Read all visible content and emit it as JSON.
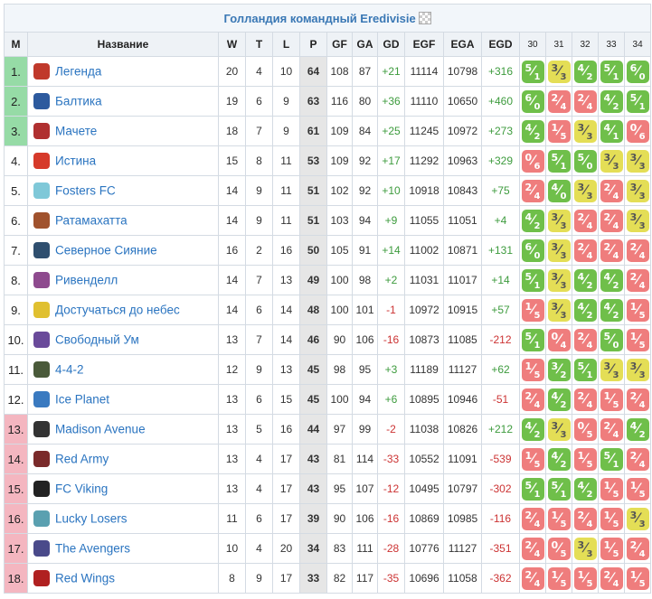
{
  "title": "Голландия командный Eredivisie",
  "headers": {
    "pos": "M",
    "name": "Название",
    "w": "W",
    "d": "T",
    "l": "L",
    "p": "P",
    "gf": "GF",
    "ga": "GA",
    "gd": "GD",
    "egf": "EGF",
    "ega": "EGA",
    "egd": "EGD",
    "rounds": [
      "30",
      "31",
      "32",
      "33",
      "34"
    ]
  },
  "colors": {
    "win": "#6fbf4a",
    "loss": "#ef7d7d",
    "draw": "#e4de56",
    "promo": "#96dba6",
    "releg": "#f4b6c0"
  },
  "rows": [
    {
      "pos": "1.",
      "zone": "green",
      "logo": "#c0392b",
      "name": "Легенда",
      "w": "20",
      "d": "4",
      "l": "10",
      "p": "64",
      "gf": "108",
      "ga": "87",
      "gd": "+21",
      "egf": "11114",
      "ega": "10798",
      "egd": "+316",
      "res": [
        [
          "W",
          "5",
          "1"
        ],
        [
          "D",
          "3",
          "3"
        ],
        [
          "W",
          "4",
          "2"
        ],
        [
          "W",
          "5",
          "1"
        ],
        [
          "W",
          "6",
          "0"
        ]
      ]
    },
    {
      "pos": "2.",
      "zone": "green",
      "logo": "#2d5a9e",
      "name": "Балтика",
      "w": "19",
      "d": "6",
      "l": "9",
      "p": "63",
      "gf": "116",
      "ga": "80",
      "gd": "+36",
      "egf": "11110",
      "ega": "10650",
      "egd": "+460",
      "res": [
        [
          "W",
          "6",
          "0"
        ],
        [
          "L",
          "2",
          "4"
        ],
        [
          "L",
          "2",
          "4"
        ],
        [
          "W",
          "4",
          "2"
        ],
        [
          "W",
          "5",
          "1"
        ]
      ]
    },
    {
      "pos": "3.",
      "zone": "green",
      "logo": "#b03030",
      "name": "Мачете",
      "w": "18",
      "d": "7",
      "l": "9",
      "p": "61",
      "gf": "109",
      "ga": "84",
      "gd": "+25",
      "egf": "11245",
      "ega": "10972",
      "egd": "+273",
      "res": [
        [
          "W",
          "4",
          "2"
        ],
        [
          "L",
          "1",
          "5"
        ],
        [
          "D",
          "3",
          "3"
        ],
        [
          "W",
          "4",
          "1"
        ],
        [
          "L",
          "0",
          "6"
        ]
      ]
    },
    {
      "pos": "4.",
      "zone": "",
      "logo": "#d63a2a",
      "name": "Истина",
      "w": "15",
      "d": "8",
      "l": "11",
      "p": "53",
      "gf": "109",
      "ga": "92",
      "gd": "+17",
      "egf": "11292",
      "ega": "10963",
      "egd": "+329",
      "res": [
        [
          "L",
          "0",
          "6"
        ],
        [
          "W",
          "5",
          "1"
        ],
        [
          "W",
          "5",
          "0"
        ],
        [
          "D",
          "3",
          "3"
        ],
        [
          "D",
          "3",
          "3"
        ]
      ]
    },
    {
      "pos": "5.",
      "zone": "",
      "logo": "#7fc8d8",
      "name": "Fosters FC",
      "w": "14",
      "d": "9",
      "l": "11",
      "p": "51",
      "gf": "102",
      "ga": "92",
      "gd": "+10",
      "egf": "10918",
      "ega": "10843",
      "egd": "+75",
      "res": [
        [
          "L",
          "2",
          "4"
        ],
        [
          "W",
          "4",
          "0"
        ],
        [
          "D",
          "3",
          "3"
        ],
        [
          "L",
          "2",
          "4"
        ],
        [
          "D",
          "3",
          "3"
        ]
      ]
    },
    {
      "pos": "6.",
      "zone": "",
      "logo": "#a0522d",
      "name": "Ратамахатта",
      "w": "14",
      "d": "9",
      "l": "11",
      "p": "51",
      "gf": "103",
      "ga": "94",
      "gd": "+9",
      "egf": "11055",
      "ega": "11051",
      "egd": "+4",
      "res": [
        [
          "W",
          "4",
          "2"
        ],
        [
          "D",
          "3",
          "3"
        ],
        [
          "L",
          "2",
          "4"
        ],
        [
          "L",
          "2",
          "4"
        ],
        [
          "D",
          "3",
          "3"
        ]
      ]
    },
    {
      "pos": "7.",
      "zone": "",
      "logo": "#2f4f6f",
      "name": "Северное Сияние",
      "w": "16",
      "d": "2",
      "l": "16",
      "p": "50",
      "gf": "105",
      "ga": "91",
      "gd": "+14",
      "egf": "11002",
      "ega": "10871",
      "egd": "+131",
      "res": [
        [
          "W",
          "6",
          "0"
        ],
        [
          "D",
          "3",
          "3"
        ],
        [
          "L",
          "2",
          "4"
        ],
        [
          "L",
          "2",
          "4"
        ],
        [
          "L",
          "2",
          "4"
        ]
      ]
    },
    {
      "pos": "8.",
      "zone": "",
      "logo": "#8e4a8e",
      "name": "Ривенделл",
      "w": "14",
      "d": "7",
      "l": "13",
      "p": "49",
      "gf": "100",
      "ga": "98",
      "gd": "+2",
      "egf": "11031",
      "ega": "11017",
      "egd": "+14",
      "res": [
        [
          "W",
          "5",
          "1"
        ],
        [
          "D",
          "3",
          "3"
        ],
        [
          "W",
          "4",
          "2"
        ],
        [
          "W",
          "4",
          "2"
        ],
        [
          "L",
          "2",
          "4"
        ]
      ]
    },
    {
      "pos": "9.",
      "zone": "",
      "logo": "#e0c030",
      "name": "Достучаться до небес",
      "w": "14",
      "d": "6",
      "l": "14",
      "p": "48",
      "gf": "100",
      "ga": "101",
      "gd": "-1",
      "egf": "10972",
      "ega": "10915",
      "egd": "+57",
      "res": [
        [
          "L",
          "1",
          "5"
        ],
        [
          "D",
          "3",
          "3"
        ],
        [
          "W",
          "4",
          "2"
        ],
        [
          "W",
          "4",
          "2"
        ],
        [
          "L",
          "1",
          "5"
        ]
      ]
    },
    {
      "pos": "10.",
      "zone": "",
      "logo": "#6a4a9a",
      "name": "Свободный Ум",
      "w": "13",
      "d": "7",
      "l": "14",
      "p": "46",
      "gf": "90",
      "ga": "106",
      "gd": "-16",
      "egf": "10873",
      "ega": "11085",
      "egd": "-212",
      "res": [
        [
          "W",
          "5",
          "1"
        ],
        [
          "L",
          "0",
          "4"
        ],
        [
          "L",
          "2",
          "4"
        ],
        [
          "W",
          "5",
          "0"
        ],
        [
          "L",
          "1",
          "5"
        ]
      ]
    },
    {
      "pos": "11.",
      "zone": "",
      "logo": "#4a5a3a",
      "name": "4-4-2",
      "w": "12",
      "d": "9",
      "l": "13",
      "p": "45",
      "gf": "98",
      "ga": "95",
      "gd": "+3",
      "egf": "11189",
      "ega": "11127",
      "egd": "+62",
      "res": [
        [
          "L",
          "1",
          "5"
        ],
        [
          "W",
          "3",
          "2"
        ],
        [
          "W",
          "5",
          "1"
        ],
        [
          "D",
          "3",
          "3"
        ],
        [
          "D",
          "3",
          "3"
        ]
      ]
    },
    {
      "pos": "12.",
      "zone": "",
      "logo": "#3a7ac0",
      "name": "Ice Planet",
      "w": "13",
      "d": "6",
      "l": "15",
      "p": "45",
      "gf": "100",
      "ga": "94",
      "gd": "+6",
      "egf": "10895",
      "ega": "10946",
      "egd": "-51",
      "res": [
        [
          "L",
          "2",
          "4"
        ],
        [
          "W",
          "4",
          "2"
        ],
        [
          "L",
          "2",
          "4"
        ],
        [
          "L",
          "1",
          "5"
        ],
        [
          "L",
          "2",
          "4"
        ]
      ]
    },
    {
      "pos": "13.",
      "zone": "red",
      "logo": "#333333",
      "name": "Madison Avenue",
      "w": "13",
      "d": "5",
      "l": "16",
      "p": "44",
      "gf": "97",
      "ga": "99",
      "gd": "-2",
      "egf": "11038",
      "ega": "10826",
      "egd": "+212",
      "res": [
        [
          "W",
          "4",
          "2"
        ],
        [
          "D",
          "3",
          "3"
        ],
        [
          "L",
          "0",
          "5"
        ],
        [
          "L",
          "2",
          "4"
        ],
        [
          "W",
          "4",
          "2"
        ]
      ]
    },
    {
      "pos": "14.",
      "zone": "red",
      "logo": "#7a2a2a",
      "name": "Red Army",
      "w": "13",
      "d": "4",
      "l": "17",
      "p": "43",
      "gf": "81",
      "ga": "114",
      "gd": "-33",
      "egf": "10552",
      "ega": "11091",
      "egd": "-539",
      "res": [
        [
          "L",
          "1",
          "5"
        ],
        [
          "W",
          "4",
          "2"
        ],
        [
          "L",
          "1",
          "5"
        ],
        [
          "W",
          "5",
          "1"
        ],
        [
          "L",
          "2",
          "4"
        ]
      ]
    },
    {
      "pos": "15.",
      "zone": "red",
      "logo": "#222222",
      "name": "FC Viking",
      "w": "13",
      "d": "4",
      "l": "17",
      "p": "43",
      "gf": "95",
      "ga": "107",
      "gd": "-12",
      "egf": "10495",
      "ega": "10797",
      "egd": "-302",
      "res": [
        [
          "W",
          "5",
          "1"
        ],
        [
          "W",
          "5",
          "1"
        ],
        [
          "W",
          "4",
          "2"
        ],
        [
          "L",
          "1",
          "5"
        ],
        [
          "L",
          "1",
          "5"
        ]
      ]
    },
    {
      "pos": "16.",
      "zone": "red",
      "logo": "#5aa0b0",
      "name": "Lucky Losers",
      "w": "11",
      "d": "6",
      "l": "17",
      "p": "39",
      "gf": "90",
      "ga": "106",
      "gd": "-16",
      "egf": "10869",
      "ega": "10985",
      "egd": "-116",
      "res": [
        [
          "L",
          "2",
          "4"
        ],
        [
          "L",
          "1",
          "5"
        ],
        [
          "L",
          "2",
          "4"
        ],
        [
          "L",
          "1",
          "5"
        ],
        [
          "D",
          "3",
          "3"
        ]
      ]
    },
    {
      "pos": "17.",
      "zone": "red",
      "logo": "#4a4a8a",
      "name": "The Avengers",
      "w": "10",
      "d": "4",
      "l": "20",
      "p": "34",
      "gf": "83",
      "ga": "111",
      "gd": "-28",
      "egf": "10776",
      "ega": "11127",
      "egd": "-351",
      "res": [
        [
          "L",
          "2",
          "4"
        ],
        [
          "L",
          "0",
          "5"
        ],
        [
          "D",
          "3",
          "3"
        ],
        [
          "L",
          "1",
          "5"
        ],
        [
          "L",
          "2",
          "4"
        ]
      ]
    },
    {
      "pos": "18.",
      "zone": "red",
      "logo": "#b02020",
      "name": "Red Wings",
      "w": "8",
      "d": "9",
      "l": "17",
      "p": "33",
      "gf": "82",
      "ga": "117",
      "gd": "-35",
      "egf": "10696",
      "ega": "11058",
      "egd": "-362",
      "res": [
        [
          "L",
          "2",
          "4"
        ],
        [
          "L",
          "1",
          "5"
        ],
        [
          "L",
          "1",
          "5"
        ],
        [
          "L",
          "2",
          "4"
        ],
        [
          "L",
          "1",
          "5"
        ]
      ]
    }
  ]
}
